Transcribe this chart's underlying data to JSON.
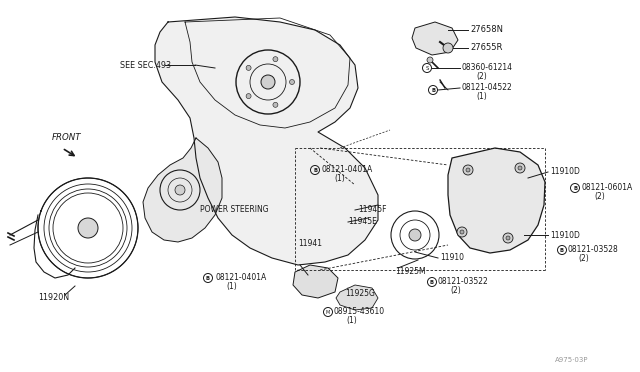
{
  "bg_color": "#ffffff",
  "line_color": "#1a1a1a",
  "text_color": "#1a1a1a",
  "fig_width": 6.4,
  "fig_height": 3.72,
  "dpi": 100,
  "watermark": "A975·03P",
  "labels": {
    "see_sec": "SEE SEC.493",
    "front": "FRONT",
    "power_steering": "POWER STEERING",
    "p27658N": "27658N",
    "p27655R": "27655R",
    "p08360": "08360-61214",
    "p08360_qty": "(2)",
    "p08121_04522": "08121-04522",
    "p08121_04522_qty": "(1)",
    "p11910D_1": "11910D",
    "p08121_0601A": "08121-0601A",
    "p08121_0601A_qty": "(2)",
    "p11910D_2": "11910D",
    "p08121_03528": "08121-03528",
    "p08121_03528_qty": "(2)",
    "p11910": "11910",
    "p11925M": "11925M",
    "p08121_03522": "08121-03522",
    "p08121_03522_qty": "(2)",
    "p11945F": "11945F",
    "p11945E": "11945E",
    "p11941": "11941",
    "p08121_0401A_mid": "08121-0401A",
    "p08121_0401A_mid_qty": "(1)",
    "p11925G": "11925G",
    "p08915": "08915-43610",
    "p08915_qty": "(1)",
    "p11920N": "11920N",
    "p08121_0401A_bot": "08121-0401A",
    "p08121_0401A_bot_qty": "(1)"
  }
}
